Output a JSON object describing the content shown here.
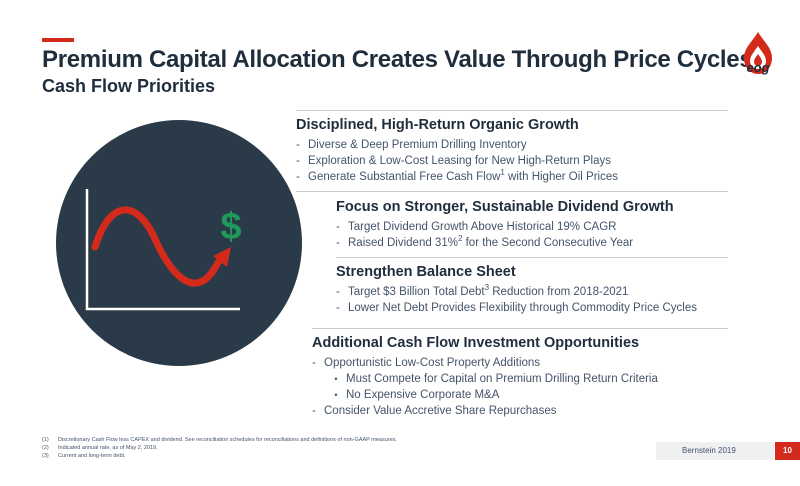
{
  "header": {
    "title": "Premium Capital Allocation Creates Value Through Price Cycles",
    "subtitle": "Cash Flow Priorities",
    "logo_text": "eog"
  },
  "illustration": {
    "symbol": "$",
    "icon": "cash-flow-wave-icon"
  },
  "sections": [
    {
      "heading": "Disciplined, High-Return Organic Growth",
      "items": [
        {
          "marker": "-",
          "text": "Diverse & Deep Premium Drilling Inventory"
        },
        {
          "marker": "-",
          "text": "Exploration & Low-Cost Leasing for New High-Return Plays"
        },
        {
          "marker": "-",
          "text": "Generate Substantial Free Cash Flow",
          "sup": "1",
          "after": " with Higher Oil Prices"
        }
      ]
    },
    {
      "heading": "Focus on Stronger, Sustainable Dividend Growth",
      "items": [
        {
          "marker": "-",
          "text": "Target Dividend Growth Above Historical 19% CAGR"
        },
        {
          "marker": "-",
          "text": "Raised Dividend 31%",
          "sup": "2",
          "after": " for the Second Consecutive Year"
        }
      ]
    },
    {
      "heading": "Strengthen Balance Sheet",
      "items": [
        {
          "marker": "-",
          "text": "Target $3 Billion Total Debt",
          "sup": "3",
          "after": " Reduction from 2018-2021"
        },
        {
          "marker": "-",
          "text": "Lower Net Debt Provides Flexibility through Commodity Price Cycles"
        }
      ]
    },
    {
      "heading": "Additional Cash Flow Investment Opportunities",
      "items": [
        {
          "marker": "-",
          "text": "Opportunistic Low-Cost Property Additions"
        },
        {
          "marker": "•",
          "text": "Must Compete for Capital on Premium Drilling Return Criteria"
        },
        {
          "marker": "•",
          "text": "No Expensive Corporate M&A"
        },
        {
          "marker": "-",
          "text": "Consider Value Accretive Share Repurchases"
        }
      ]
    }
  ],
  "footnotes": [
    {
      "num": "(1)",
      "text": "Discretionary Cash Flow less CAPEX and dividend. See reconciliation schedules for reconciliations and definitions of non-GAAP measures."
    },
    {
      "num": "(2)",
      "text": "Indicated annual rate, as of May 2, 2019."
    },
    {
      "num": "(3)",
      "text": "Current and long-term debt."
    }
  ],
  "footer": {
    "source": "Bernstein 2019",
    "page_number": "10"
  },
  "colors": {
    "accent": "#d42a1c",
    "navy": "#2b3a48",
    "green": "#1e9b5a"
  }
}
